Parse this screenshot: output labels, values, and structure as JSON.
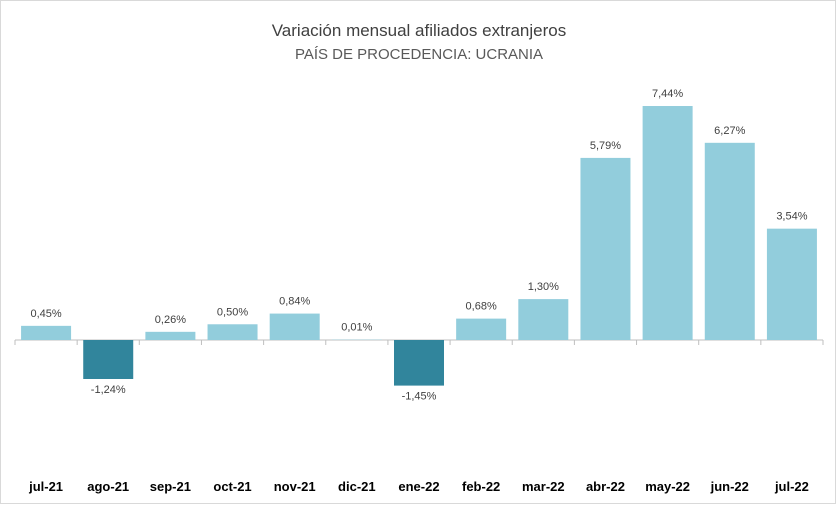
{
  "chart_data": {
    "type": "bar",
    "title": "Variación mensual afiliados extranjeros",
    "subtitle": "PAÍS DE PROCEDENCIA: UCRANIA",
    "categories": [
      "jul-21",
      "ago-21",
      "sep-21",
      "oct-21",
      "nov-21",
      "dic-21",
      "ene-22",
      "feb-22",
      "mar-22",
      "abr-22",
      "may-22",
      "jun-22",
      "jul-22"
    ],
    "values": [
      0.45,
      -1.24,
      0.26,
      0.5,
      0.84,
      0.01,
      -1.45,
      0.68,
      1.3,
      5.79,
      7.44,
      6.27,
      3.54
    ],
    "data_labels": [
      "0,45%",
      "-1,24%",
      "0,26%",
      "0,50%",
      "0,84%",
      "0,01%",
      "-1,45%",
      "0,68%",
      "1,30%",
      "5,79%",
      "7,44%",
      "6,27%",
      "3,54%"
    ],
    "unit": "%",
    "legend": "none",
    "grid": false,
    "colors": {
      "positive": "#92cddc",
      "negative": "#31859c",
      "axis": "#bfbfbf"
    }
  }
}
